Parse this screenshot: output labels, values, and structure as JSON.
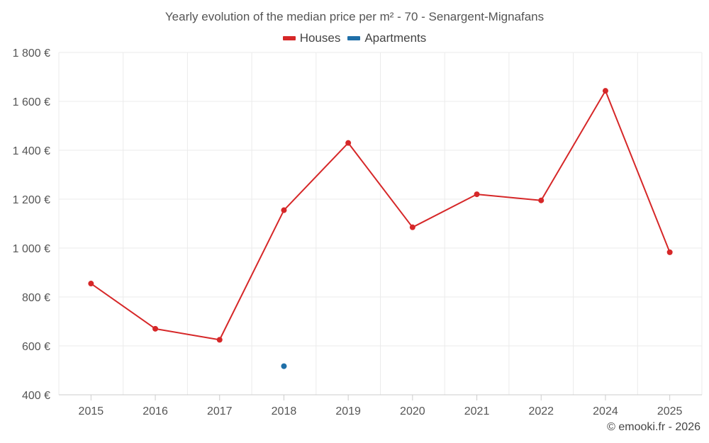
{
  "chart_data": {
    "type": "line",
    "title": "Yearly evolution of the median price per m² - 70 - Senargent-Mignafans",
    "categories": [
      "2015",
      "2016",
      "2017",
      "2018",
      "2019",
      "2020",
      "2021",
      "2022",
      "2024",
      "2025"
    ],
    "y_ticks": [
      "400 €",
      "600 €",
      "800 €",
      "1 000 €",
      "1 200 €",
      "1 400 €",
      "1 600 €",
      "1 800 €"
    ],
    "y_tick_values": [
      400,
      600,
      800,
      1000,
      1200,
      1400,
      1600,
      1800
    ],
    "ylim": [
      400,
      1800
    ],
    "xlabel": "",
    "ylabel": "",
    "grid": true,
    "legend_position": "top-center",
    "series": [
      {
        "name": "Houses",
        "color": "#d62728",
        "values": [
          855,
          670,
          625,
          1155,
          1430,
          1085,
          1220,
          1195,
          1643,
          983
        ]
      },
      {
        "name": "Apartments",
        "color": "#1f6fa8",
        "values": [
          null,
          null,
          null,
          517,
          null,
          null,
          null,
          null,
          null,
          null
        ]
      }
    ]
  },
  "credit": "© emooki.fr - 2026"
}
